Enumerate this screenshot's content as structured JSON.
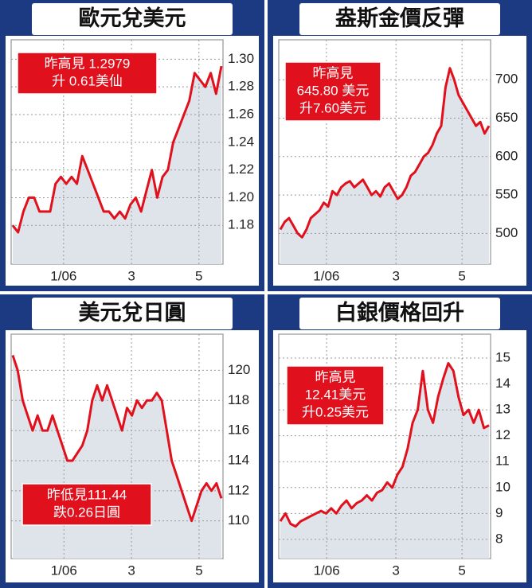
{
  "chart_data": [
    {
      "type": "line",
      "title": "歐元兌美元",
      "color": "#e0101c",
      "annotation": [
        "昨高見 1.2979",
        "升 0.61美仙"
      ],
      "x": [
        0,
        1,
        2,
        3,
        4,
        5,
        6,
        7,
        8,
        9,
        10,
        11,
        12,
        13,
        14,
        15,
        16,
        17,
        18,
        19,
        20,
        21,
        22,
        23,
        24,
        25,
        26,
        27,
        28,
        29,
        30,
        31,
        32,
        33,
        34,
        35,
        36,
        37,
        38,
        39
      ],
      "values": [
        1.18,
        1.175,
        1.19,
        1.2,
        1.2,
        1.19,
        1.19,
        1.19,
        1.21,
        1.215,
        1.21,
        1.215,
        1.21,
        1.23,
        1.22,
        1.21,
        1.2,
        1.19,
        1.19,
        1.185,
        1.19,
        1.185,
        1.195,
        1.2,
        1.19,
        1.205,
        1.22,
        1.2,
        1.215,
        1.22,
        1.24,
        1.25,
        1.26,
        1.27,
        1.29,
        1.285,
        1.28,
        1.29,
        1.275,
        1.295
      ],
      "xlim": [
        0,
        39
      ],
      "xticks": [
        {
          "value": 9.5,
          "label": "1/06"
        },
        {
          "value": 22.2,
          "label": "3"
        },
        {
          "value": 34.8,
          "label": "5"
        }
      ],
      "ylim": [
        1.152,
        1.314
      ],
      "yticks": [
        {
          "value": 1.18,
          "label": "1.18"
        },
        {
          "value": 1.2,
          "label": "1.20"
        },
        {
          "value": 1.22,
          "label": "1.22"
        },
        {
          "value": 1.24,
          "label": "1.24"
        },
        {
          "value": 1.26,
          "label": "1.26"
        },
        {
          "value": 1.28,
          "label": "1.28"
        },
        {
          "value": 1.3,
          "label": "1.30"
        }
      ],
      "grid": true
    },
    {
      "type": "line",
      "title": "盎斯金價反彈",
      "color": "#e0101c",
      "annotation": [
        "昨高見",
        "645.80 美元",
        "升7.60美元"
      ],
      "x": [
        0,
        1,
        2,
        3,
        4,
        5,
        6,
        7,
        8,
        9,
        10,
        11,
        12,
        13,
        14,
        15,
        16,
        17,
        18,
        19,
        20,
        21,
        22,
        23,
        24,
        25,
        26,
        27,
        28,
        29,
        30,
        31,
        32,
        33,
        34,
        35,
        36,
        37,
        38,
        39,
        40,
        41,
        42,
        43,
        44,
        45,
        46,
        47,
        48
      ],
      "values": [
        505,
        515,
        520,
        510,
        500,
        495,
        505,
        520,
        525,
        530,
        540,
        535,
        555,
        550,
        560,
        565,
        568,
        560,
        565,
        570,
        560,
        550,
        555,
        548,
        560,
        565,
        555,
        545,
        550,
        560,
        575,
        580,
        590,
        600,
        605,
        615,
        630,
        640,
        690,
        715,
        700,
        680,
        670,
        660,
        650,
        640,
        645,
        630,
        640
      ],
      "xlim": [
        0,
        48
      ],
      "xticks": [
        {
          "value": 10.6,
          "label": "1/06"
        },
        {
          "value": 26.6,
          "label": "3"
        },
        {
          "value": 41.8,
          "label": "5"
        }
      ],
      "ylim": [
        460,
        752
      ],
      "yticks": [
        500,
        550,
        600,
        650,
        700
      ],
      "grid": true
    },
    {
      "type": "line",
      "title": "美元兌日圓",
      "color": "#e0101c",
      "annotation": [
        "昨低見111.44",
        "跌0.26日圓"
      ],
      "x": [
        0,
        1,
        2,
        3,
        4,
        5,
        6,
        7,
        8,
        9,
        10,
        11,
        12,
        13,
        14,
        15,
        16,
        17,
        18,
        19,
        20,
        21,
        22,
        23,
        24,
        25,
        26,
        27,
        28,
        29,
        30,
        31,
        32,
        33,
        34,
        35,
        36,
        37,
        38,
        39,
        40,
        41,
        42
      ],
      "values": [
        121,
        120,
        118,
        117,
        116,
        117,
        116,
        116,
        117,
        116,
        115,
        114,
        114,
        114.5,
        115,
        116,
        118,
        119,
        118,
        119,
        118,
        117,
        116,
        117.5,
        117,
        118,
        117.5,
        118,
        118,
        118.5,
        118,
        116,
        114,
        113,
        112,
        111,
        110,
        111,
        112,
        112.5,
        112,
        112.5,
        111.5
      ],
      "xlim": [
        0,
        42
      ],
      "xticks": [
        {
          "value": 10.3,
          "label": "1/06"
        },
        {
          "value": 23.9,
          "label": "3"
        },
        {
          "value": 37.5,
          "label": "5"
        }
      ],
      "ylim": [
        107.5,
        122.4
      ],
      "yticks": [
        110,
        112,
        114,
        116,
        118,
        120
      ],
      "grid": true
    },
    {
      "type": "line",
      "title": "白銀價格回升",
      "color": "#e0101c",
      "annotation": [
        "昨高見",
        "12.41美元",
        "升0.25美元"
      ],
      "x": [
        0,
        1,
        2,
        3,
        4,
        5,
        6,
        7,
        8,
        9,
        10,
        11,
        12,
        13,
        14,
        15,
        16,
        17,
        18,
        19,
        20,
        21,
        22,
        23,
        24,
        25,
        26,
        27,
        28,
        29,
        30,
        31,
        32,
        33,
        34,
        35,
        36,
        37,
        38,
        39,
        40,
        41
      ],
      "values": [
        8.7,
        9.0,
        8.6,
        8.5,
        8.7,
        8.8,
        8.9,
        9.0,
        9.1,
        9.0,
        9.2,
        9.0,
        9.3,
        9.5,
        9.2,
        9.4,
        9.5,
        9.7,
        9.5,
        9.8,
        9.9,
        10.2,
        10.0,
        10.5,
        10.8,
        11.5,
        12.5,
        13.0,
        14.5,
        13.0,
        12.5,
        13.5,
        14.2,
        14.8,
        14.5,
        13.5,
        12.8,
        13.0,
        12.5,
        13.0,
        12.3,
        12.4
      ],
      "xlim": [
        0,
        41
      ],
      "xticks": [
        {
          "value": 9.1,
          "label": "1/06"
        },
        {
          "value": 22.7,
          "label": "3"
        },
        {
          "value": 35.7,
          "label": "5"
        }
      ],
      "ylim": [
        7.26,
        15.92
      ],
      "yticks": [
        8,
        9,
        10,
        11,
        12,
        13,
        14,
        15
      ],
      "grid": true
    }
  ]
}
